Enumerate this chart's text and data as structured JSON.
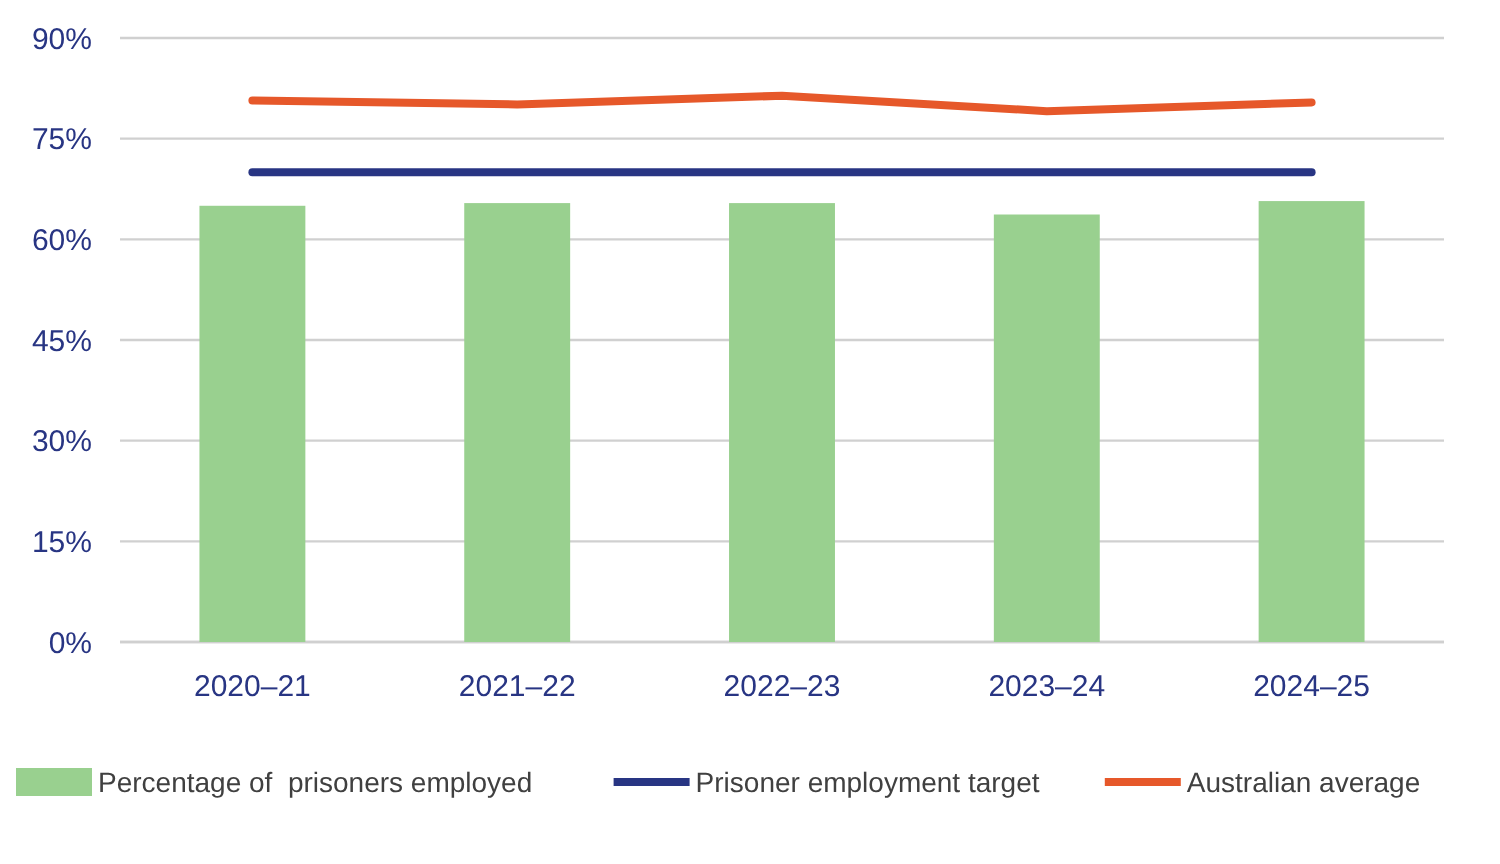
{
  "chart_data": {
    "type": "bar",
    "categories": [
      "2020–21",
      "2021–22",
      "2022–23",
      "2023–24",
      "2024–25"
    ],
    "series": [
      {
        "name": "Percentage of  prisoners employed",
        "color": "#99d08f",
        "values": [
          65.0,
          65.4,
          65.4,
          63.7,
          65.7
        ]
      },
      {
        "name": "Prisoner employment target",
        "type": "line",
        "color": "#283583",
        "values": [
          70,
          70,
          70,
          70,
          70
        ]
      },
      {
        "name": "Australian average",
        "type": "line",
        "color": "#e6582a",
        "values": [
          80.7,
          80.1,
          81.4,
          79.1,
          80.4
        ]
      }
    ],
    "ylim": [
      0,
      90
    ],
    "yticks": [
      {
        "value": 0,
        "label": "0%"
      },
      {
        "value": 15,
        "label": "15%"
      },
      {
        "value": 30,
        "label": "30%"
      },
      {
        "value": 45,
        "label": "45%"
      },
      {
        "value": 60,
        "label": "60%"
      },
      {
        "value": 75,
        "label": "75%"
      },
      {
        "value": 90,
        "label": "90%"
      }
    ],
    "grid": "y",
    "legend": "bottom",
    "line_style": "solid",
    "marker": "none"
  }
}
